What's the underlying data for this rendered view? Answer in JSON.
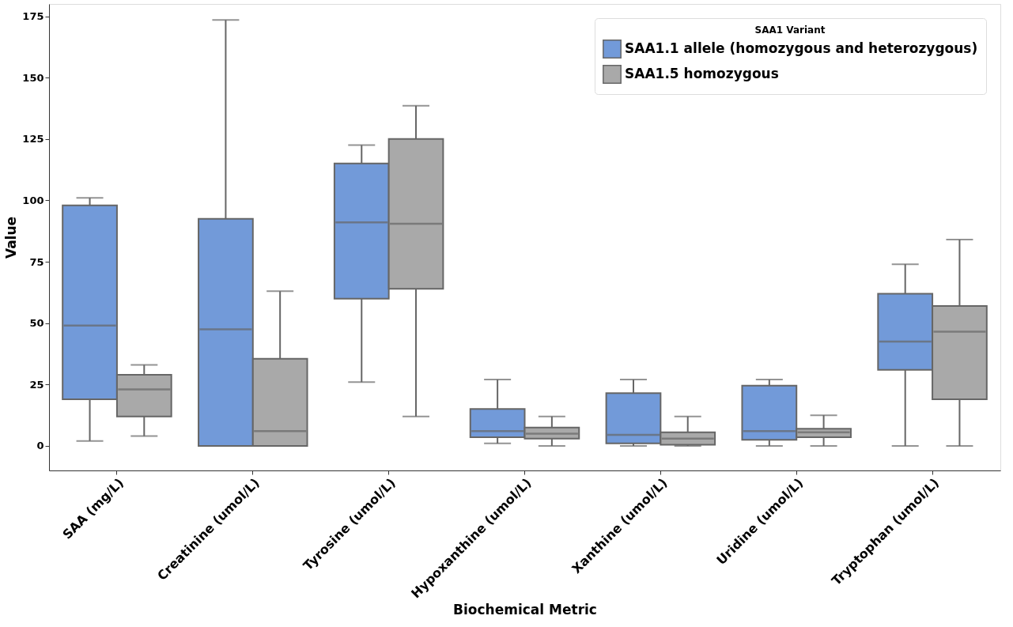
{
  "chart_data": {
    "type": "box",
    "xlabel": "Biochemical Metric",
    "ylabel": "Value",
    "legend_title": "SAA1 Variant",
    "legend": "top right",
    "grid": false,
    "categories": [
      "SAA (mg/L)",
      "Creatinine (umol/L)",
      "Tyrosine (umol/L)",
      "Hypoxanthine (umol/L)",
      "Xanthine (umol/L)",
      "Uridine  (umol/L)",
      "Tryptophan (umol/L)"
    ],
    "ylim": [
      -10,
      180
    ],
    "yticks": [
      0,
      25,
      50,
      75,
      100,
      125,
      150,
      175
    ],
    "series": [
      {
        "name": "SAA1.1 allele (homozygous and heterozygous)",
        "color": "#729ad9",
        "boxes": [
          {
            "low": 2,
            "q1": 19,
            "median": 49,
            "q3": 98,
            "high": 101
          },
          {
            "low": 0,
            "q1": 0,
            "median": 47.5,
            "q3": 92.5,
            "high": 173.5
          },
          {
            "low": 26,
            "q1": 60,
            "median": 91,
            "q3": 115,
            "high": 122.5
          },
          {
            "low": 1,
            "q1": 3.5,
            "median": 6,
            "q3": 15,
            "high": 27
          },
          {
            "low": 0,
            "q1": 1,
            "median": 4.5,
            "q3": 21.5,
            "high": 27
          },
          {
            "low": 0,
            "q1": 2.5,
            "median": 6,
            "q3": 24.5,
            "high": 27
          },
          {
            "low": 0,
            "q1": 31,
            "median": 42.5,
            "q3": 62,
            "high": 74
          }
        ]
      },
      {
        "name": "SAA1.5 homozygous",
        "color": "#a9a9a9",
        "boxes": [
          {
            "low": 4,
            "q1": 12,
            "median": 23,
            "q3": 29,
            "high": 33
          },
          {
            "low": 0,
            "q1": 0,
            "median": 6,
            "q3": 35.5,
            "high": 63
          },
          {
            "low": 12,
            "q1": 64,
            "median": 90.5,
            "q3": 125,
            "high": 138.5
          },
          {
            "low": 0,
            "q1": 3,
            "median": 5,
            "q3": 7.5,
            "high": 12
          },
          {
            "low": 0,
            "q1": 0.5,
            "median": 3,
            "q3": 5.5,
            "high": 12
          },
          {
            "low": 0,
            "q1": 3.5,
            "median": 5.5,
            "q3": 7,
            "high": 12.5
          },
          {
            "low": 0,
            "q1": 19,
            "median": 46.5,
            "q3": 57,
            "high": 84
          }
        ]
      }
    ]
  }
}
